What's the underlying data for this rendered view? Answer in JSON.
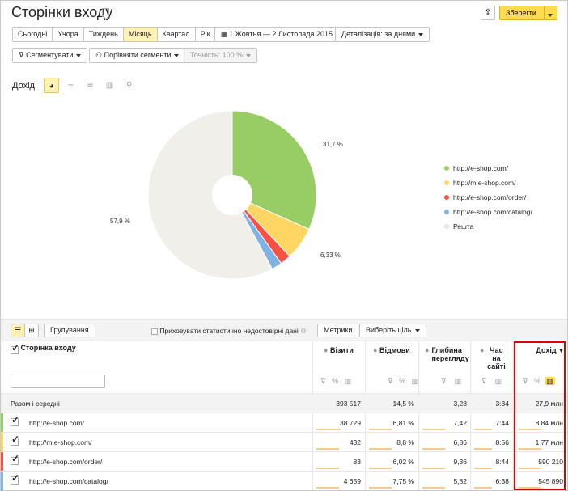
{
  "header": {
    "title": "Сторінки входу",
    "save_label": "Зберегти"
  },
  "periods": [
    "Сьогодні",
    "Учора",
    "Тиждень",
    "Місяць",
    "Квартал",
    "Рік"
  ],
  "active_period": "Місяць",
  "date_range": "1 Жовтня — 2 Листопада 2015",
  "detail_label": "Деталізація: за днями",
  "segment_label": "Сегментувати",
  "compare_label": "Порівняти сегменти",
  "accuracy_label": "Точність: 100 %",
  "metric_label": "Дохід",
  "chart_data": {
    "type": "pie",
    "donut": true,
    "slices": [
      {
        "label": "http://e-shop.com/",
        "value": 31.7,
        "color": "#98cc64",
        "text": "31,7 %"
      },
      {
        "label": "http://m.e-shop.com/",
        "value": 6.33,
        "color": "#ffd664",
        "text": "6,33 %"
      },
      {
        "label": "http://e-shop.com/order/",
        "value": 2.1,
        "color": "#f65142",
        "text": ""
      },
      {
        "label": "http://e-shop.com/catalog/",
        "value": 2.0,
        "color": "#7fb3e5",
        "text": ""
      },
      {
        "label": "Решта",
        "value": 57.9,
        "color": "#f0efea",
        "text": "57,9 %"
      }
    ]
  },
  "table": {
    "group_label": "Групування",
    "hide_label": "Приховувати статистично недостовірні дані",
    "metrics_label": "Метрики",
    "goal_label": "Виберіть ціль",
    "dim_header": "Сторінка входу",
    "columns": [
      "Візити",
      "Відмови",
      "Глибина перегляду",
      "Час на сайті",
      "Дохід"
    ],
    "totals": {
      "label": "Разом і середні",
      "values": [
        "393 517",
        "14,5 %",
        "3,28",
        "3:34",
        "27,9 млн"
      ]
    },
    "rows": [
      {
        "name": "http://e-shop.com/",
        "color": "#98cc64",
        "values": [
          "38 729",
          "6,81 %",
          "7,42",
          "7:44",
          "8,84 млн"
        ]
      },
      {
        "name": "http://m.e-shop.com/",
        "color": "#ffd664",
        "values": [
          "432",
          "8,8 %",
          "6,86",
          "8:56",
          "1,77 млн"
        ]
      },
      {
        "name": "http://e-shop.com/order/",
        "color": "#f65142",
        "values": [
          "83",
          "6,02 %",
          "9,36",
          "8:44",
          "590 210"
        ]
      },
      {
        "name": "http://e-shop.com/catalog/",
        "color": "#7fb3e5",
        "values": [
          "4 659",
          "7,75 %",
          "5,82",
          "6:38",
          "545 890"
        ]
      }
    ]
  }
}
